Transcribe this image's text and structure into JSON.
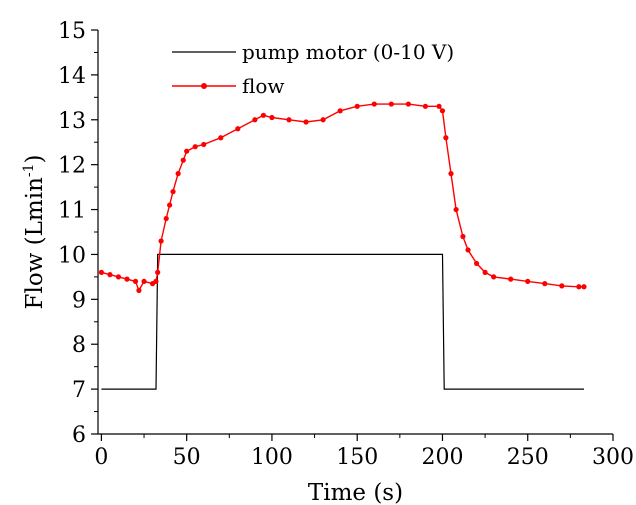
{
  "chart_data": {
    "type": "line",
    "xlabel": "Time (s)",
    "ylabel_main": "Flow (Lmin",
    "ylabel_sup": "-1",
    "ylabel_close": ")",
    "xlim": [
      -2,
      300
    ],
    "ylim": [
      6,
      15
    ],
    "x_ticks": [
      0,
      50,
      100,
      150,
      200,
      250,
      300
    ],
    "y_ticks": [
      6,
      7,
      8,
      9,
      10,
      11,
      12,
      13,
      14,
      15
    ],
    "legend_position": "top-center",
    "grid": false,
    "series": [
      {
        "name": "pump motor (0-10 V)",
        "color": "#000000",
        "marker": "none",
        "points": [
          [
            0,
            7
          ],
          [
            32,
            7
          ],
          [
            33,
            10
          ],
          [
            200,
            10
          ],
          [
            201,
            7
          ],
          [
            283,
            7
          ]
        ]
      },
      {
        "name": "flow",
        "color": "#ff0000",
        "marker": "circle",
        "points": [
          [
            0,
            9.6
          ],
          [
            5,
            9.55
          ],
          [
            10,
            9.5
          ],
          [
            15,
            9.45
          ],
          [
            20,
            9.4
          ],
          [
            22,
            9.2
          ],
          [
            25,
            9.4
          ],
          [
            30,
            9.35
          ],
          [
            32,
            9.4
          ],
          [
            33,
            9.6
          ],
          [
            35,
            10.3
          ],
          [
            38,
            10.8
          ],
          [
            40,
            11.1
          ],
          [
            42,
            11.4
          ],
          [
            45,
            11.8
          ],
          [
            48,
            12.1
          ],
          [
            50,
            12.3
          ],
          [
            55,
            12.4
          ],
          [
            60,
            12.45
          ],
          [
            70,
            12.6
          ],
          [
            80,
            12.8
          ],
          [
            90,
            13.0
          ],
          [
            95,
            13.1
          ],
          [
            100,
            13.05
          ],
          [
            110,
            13.0
          ],
          [
            120,
            12.95
          ],
          [
            130,
            13.0
          ],
          [
            140,
            13.2
          ],
          [
            150,
            13.3
          ],
          [
            160,
            13.35
          ],
          [
            170,
            13.35
          ],
          [
            180,
            13.35
          ],
          [
            190,
            13.3
          ],
          [
            198,
            13.3
          ],
          [
            200,
            13.2
          ],
          [
            202,
            12.6
          ],
          [
            205,
            11.8
          ],
          [
            208,
            11.0
          ],
          [
            212,
            10.4
          ],
          [
            215,
            10.1
          ],
          [
            220,
            9.8
          ],
          [
            225,
            9.6
          ],
          [
            230,
            9.5
          ],
          [
            240,
            9.45
          ],
          [
            250,
            9.4
          ],
          [
            260,
            9.35
          ],
          [
            270,
            9.3
          ],
          [
            280,
            9.28
          ],
          [
            283,
            9.28
          ]
        ]
      }
    ]
  }
}
